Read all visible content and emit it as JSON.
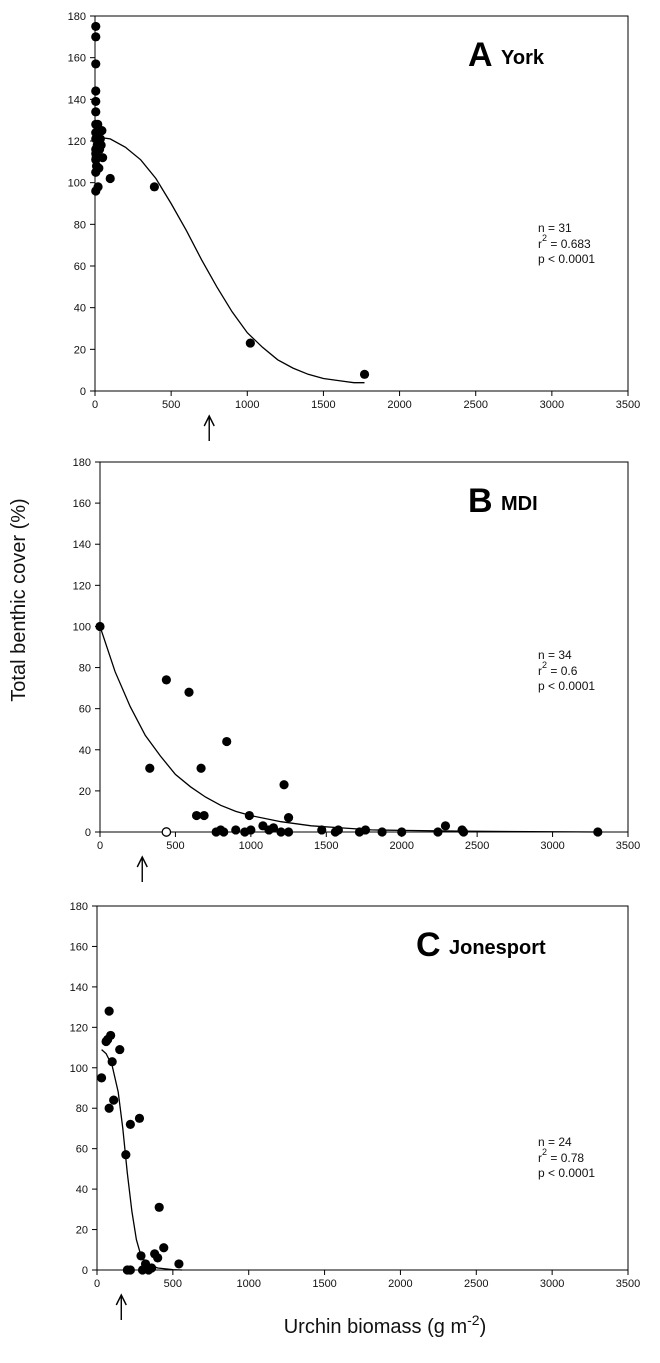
{
  "figure": {
    "ylabel": "Total benthic cover (%)",
    "xlabel": "Urchin biomass (g m",
    "xlabel_exponent": "-2",
    "xlabel_close": ")"
  },
  "chart_data": [
    {
      "type": "scatter",
      "panel_letter": "A",
      "site": "York",
      "xlim": [
        0,
        3500
      ],
      "ylim": [
        0,
        180
      ],
      "x_ticks": [
        0,
        500,
        1000,
        1500,
        2000,
        2500,
        3000,
        3500
      ],
      "y_ticks": [
        0,
        20,
        40,
        60,
        80,
        100,
        120,
        140,
        160,
        180
      ],
      "stats": {
        "n": "n = 31",
        "r2_prefix": "r",
        "r2_exponent": "2",
        "r2_value": " = 0.683",
        "p": "p < 0.0001"
      },
      "arrow_x": 750,
      "points": [
        [
          5,
          175
        ],
        [
          5,
          170
        ],
        [
          5,
          157
        ],
        [
          5,
          144
        ],
        [
          5,
          139
        ],
        [
          5,
          134
        ],
        [
          5,
          128
        ],
        [
          5,
          124
        ],
        [
          5,
          121
        ],
        [
          5,
          116
        ],
        [
          5,
          114
        ],
        [
          5,
          111
        ],
        [
          5,
          105
        ],
        [
          5,
          96
        ],
        [
          20,
          126
        ],
        [
          25,
          107
        ],
        [
          20,
          98
        ],
        [
          35,
          121
        ],
        [
          45,
          125
        ],
        [
          50,
          112
        ],
        [
          100,
          102
        ],
        [
          390,
          98
        ],
        [
          1020,
          23
        ],
        [
          1770,
          8
        ],
        [
          12,
          122
        ],
        [
          15,
          118
        ],
        [
          10,
          108
        ],
        [
          8,
          112
        ],
        [
          30,
          116
        ],
        [
          18,
          128
        ],
        [
          40,
          118
        ]
      ],
      "fit": [
        [
          0,
          122
        ],
        [
          100,
          121
        ],
        [
          200,
          117
        ],
        [
          300,
          111
        ],
        [
          400,
          102
        ],
        [
          500,
          90
        ],
        [
          600,
          77
        ],
        [
          700,
          63
        ],
        [
          800,
          50
        ],
        [
          900,
          38
        ],
        [
          1000,
          28
        ],
        [
          1100,
          21
        ],
        [
          1200,
          15
        ],
        [
          1300,
          11
        ],
        [
          1400,
          8
        ],
        [
          1500,
          6
        ],
        [
          1600,
          5
        ],
        [
          1700,
          4
        ],
        [
          1770,
          4
        ]
      ]
    },
    {
      "type": "scatter",
      "panel_letter": "B",
      "site": "MDI",
      "xlim": [
        0,
        3500
      ],
      "ylim": [
        0,
        180
      ],
      "x_ticks": [
        0,
        500,
        1000,
        1500,
        2000,
        2500,
        3000,
        3500
      ],
      "y_ticks": [
        0,
        20,
        40,
        60,
        80,
        100,
        120,
        140,
        160,
        180
      ],
      "stats": {
        "n": "n = 34",
        "r2_prefix": "r",
        "r2_exponent": "2",
        "r2_value": " = 0.6",
        "p": "p < 0.0001"
      },
      "arrow_x": 280,
      "points": [
        [
          0,
          100
        ],
        [
          330,
          31
        ],
        [
          440,
          74
        ],
        [
          590,
          68
        ],
        [
          640,
          8
        ],
        [
          670,
          31
        ],
        [
          690,
          8
        ],
        [
          800,
          1
        ],
        [
          820,
          0
        ],
        [
          840,
          44
        ],
        [
          900,
          1
        ],
        [
          960,
          0
        ],
        [
          990,
          8
        ],
        [
          1000,
          1
        ],
        [
          1080,
          3
        ],
        [
          1150,
          2
        ],
        [
          1200,
          0
        ],
        [
          1220,
          23
        ],
        [
          1250,
          7
        ],
        [
          1470,
          1
        ],
        [
          1560,
          0
        ],
        [
          1720,
          0
        ],
        [
          1760,
          1
        ],
        [
          1870,
          0
        ],
        [
          2000,
          0
        ],
        [
          2240,
          0
        ],
        [
          2290,
          3
        ],
        [
          2400,
          1
        ],
        [
          2410,
          0
        ],
        [
          3300,
          0
        ],
        [
          770,
          0
        ],
        [
          1120,
          1
        ],
        [
          1580,
          1
        ],
        [
          1250,
          0
        ]
      ],
      "open_points": [
        [
          440,
          0
        ]
      ],
      "fit": [
        [
          0,
          100
        ],
        [
          100,
          78
        ],
        [
          200,
          61
        ],
        [
          300,
          47
        ],
        [
          400,
          37
        ],
        [
          500,
          28
        ],
        [
          600,
          22
        ],
        [
          700,
          17
        ],
        [
          800,
          13
        ],
        [
          900,
          10
        ],
        [
          1000,
          8
        ],
        [
          1200,
          5
        ],
        [
          1400,
          3
        ],
        [
          1600,
          2
        ],
        [
          1800,
          1
        ],
        [
          2000,
          0.8
        ],
        [
          2400,
          0.4
        ],
        [
          3300,
          0
        ]
      ]
    },
    {
      "type": "scatter",
      "panel_letter": "C",
      "site": "Jonesport",
      "xlim": [
        0,
        3500
      ],
      "ylim": [
        0,
        180
      ],
      "x_ticks": [
        0,
        500,
        1000,
        1500,
        2000,
        2500,
        3000,
        3500
      ],
      "y_ticks": [
        0,
        20,
        40,
        60,
        80,
        100,
        120,
        140,
        160,
        180
      ],
      "stats": {
        "n": "n = 24",
        "r2_prefix": "r",
        "r2_exponent": "2",
        "r2_value": " = 0.78",
        "p": "p < 0.0001"
      },
      "arrow_x": 160,
      "points": [
        [
          30,
          95
        ],
        [
          60,
          113
        ],
        [
          80,
          128
        ],
        [
          90,
          116
        ],
        [
          100,
          103
        ],
        [
          80,
          80
        ],
        [
          110,
          84
        ],
        [
          150,
          109
        ],
        [
          190,
          57
        ],
        [
          220,
          72
        ],
        [
          280,
          75
        ],
        [
          290,
          7
        ],
        [
          300,
          0
        ],
        [
          320,
          3
        ],
        [
          360,
          1
        ],
        [
          380,
          8
        ],
        [
          400,
          6
        ],
        [
          410,
          31
        ],
        [
          440,
          11
        ],
        [
          540,
          3
        ],
        [
          200,
          0
        ],
        [
          220,
          0
        ],
        [
          340,
          0
        ],
        [
          70,
          114
        ]
      ],
      "fit": [
        [
          30,
          109
        ],
        [
          60,
          107
        ],
        [
          100,
          101
        ],
        [
          140,
          88
        ],
        [
          170,
          70
        ],
        [
          200,
          48
        ],
        [
          230,
          29
        ],
        [
          260,
          15
        ],
        [
          290,
          7
        ],
        [
          330,
          3
        ],
        [
          400,
          1
        ],
        [
          500,
          0.2
        ],
        [
          560,
          0
        ]
      ]
    }
  ]
}
